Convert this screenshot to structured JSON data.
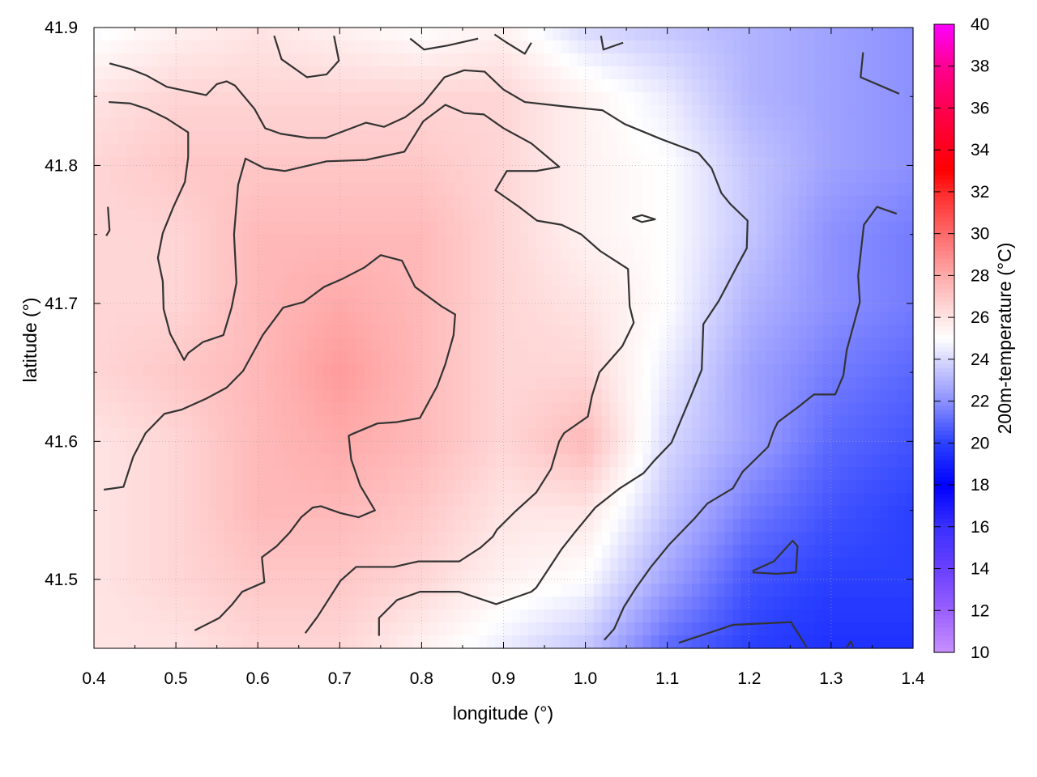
{
  "chart_data": {
    "type": "heatmap",
    "title": "",
    "xlabel": "longitude (°)",
    "ylabel": "latitude (°)",
    "colorbar_label": "200m-temperature (°C)",
    "xlim": [
      0.4,
      1.4
    ],
    "ylim": [
      41.45,
      41.9
    ],
    "clim": [
      10,
      40
    ],
    "grid": true,
    "x_ticks": [
      "0.4",
      "0.5",
      "0.6",
      "0.7",
      "0.8",
      "0.9",
      "1.0",
      "1.1",
      "1.2",
      "1.3",
      "1.4"
    ],
    "y_ticks": [
      "41.5",
      "41.6",
      "41.7",
      "41.8",
      "41.9"
    ],
    "colorbar_ticks": [
      "10",
      "12",
      "14",
      "16",
      "18",
      "20",
      "22",
      "24",
      "26",
      "28",
      "30",
      "32",
      "34",
      "36",
      "38",
      "40"
    ],
    "palette": [
      {
        "v": 10,
        "c": "#c890ff"
      },
      {
        "v": 12,
        "c": "#9a60ff"
      },
      {
        "v": 14,
        "c": "#6a40ff"
      },
      {
        "v": 16,
        "c": "#3a30ff"
      },
      {
        "v": 18,
        "c": "#0000ff"
      },
      {
        "v": 20,
        "c": "#2a40ff"
      },
      {
        "v": 22,
        "c": "#8c90ff"
      },
      {
        "v": 24,
        "c": "#d8d8ff"
      },
      {
        "v": 25,
        "c": "#ffffff"
      },
      {
        "v": 26,
        "c": "#ffe4e4"
      },
      {
        "v": 28,
        "c": "#ffaaaa"
      },
      {
        "v": 30,
        "c": "#ff6a6a"
      },
      {
        "v": 32,
        "c": "#ff2a2a"
      },
      {
        "v": 33,
        "c": "#ff0000"
      },
      {
        "v": 36,
        "c": "#ff0050"
      },
      {
        "v": 38,
        "c": "#ff0090"
      },
      {
        "v": 40,
        "c": "#ff00ff"
      }
    ],
    "grid_lon": [
      0.4,
      0.5,
      0.6,
      0.7,
      0.8,
      0.9,
      1.0,
      1.1,
      1.2,
      1.3,
      1.4
    ],
    "grid_lat": [
      41.9,
      41.85,
      41.8,
      41.75,
      41.7,
      41.65,
      41.6,
      41.55,
      41.5,
      41.45
    ],
    "values": [
      [
        24.8,
        25.5,
        26,
        25.5,
        25,
        25.5,
        24,
        23.5,
        23,
        22.5,
        22
      ],
      [
        26,
        26.5,
        26.5,
        26.5,
        26.5,
        26.5,
        25.5,
        24.5,
        23,
        22.5,
        22
      ],
      [
        26.5,
        27,
        27,
        27,
        27,
        26.5,
        25.5,
        25,
        23.5,
        22.5,
        22
      ],
      [
        26.5,
        26.5,
        27.5,
        27.5,
        27.5,
        26.5,
        25.5,
        25,
        23.5,
        22,
        21.5
      ],
      [
        26.5,
        26.5,
        27.5,
        28,
        27.5,
        26.5,
        26,
        25,
        23,
        22,
        21.5
      ],
      [
        26.5,
        27,
        27.5,
        28.5,
        27.5,
        26.5,
        26.5,
        24.5,
        22.5,
        21.5,
        21
      ],
      [
        26,
        26.5,
        27.5,
        28,
        27.5,
        26.5,
        27.5,
        24,
        22.5,
        21,
        20.5
      ],
      [
        26,
        26.5,
        27.5,
        27.5,
        27,
        26,
        26,
        23.5,
        21.5,
        20.5,
        20
      ],
      [
        26,
        26.5,
        27,
        27,
        26.5,
        25.5,
        25,
        22.5,
        20.5,
        20,
        20
      ],
      [
        26,
        26,
        26.5,
        26.5,
        25.5,
        24.5,
        23.5,
        21,
        20,
        19.5,
        19.5
      ]
    ],
    "contours": [
      [
        [
          0.419,
          41.874
        ],
        [
          0.444,
          41.87
        ],
        [
          0.465,
          41.865
        ],
        [
          0.489,
          41.857
        ],
        [
          0.537,
          41.851
        ],
        [
          0.55,
          41.859
        ],
        [
          0.562,
          41.861
        ],
        [
          0.572,
          41.858
        ],
        [
          0.596,
          41.841
        ],
        [
          0.609,
          41.827
        ],
        [
          0.628,
          41.823
        ],
        [
          0.661,
          41.82
        ],
        [
          0.683,
          41.82
        ],
        [
          0.732,
          41.831
        ],
        [
          0.754,
          41.828
        ],
        [
          0.78,
          41.835
        ],
        [
          0.802,
          41.845
        ],
        [
          0.828,
          41.864
        ],
        [
          0.852,
          41.869
        ],
        [
          0.877,
          41.868
        ],
        [
          0.9,
          41.855
        ],
        [
          0.926,
          41.846
        ],
        [
          0.971,
          41.843
        ],
        [
          1.021,
          41.84
        ],
        [
          1.048,
          41.83
        ],
        [
          1.093,
          41.819
        ],
        [
          1.138,
          41.809
        ],
        [
          1.154,
          41.798
        ],
        [
          1.166,
          41.78
        ],
        [
          1.177,
          41.772
        ],
        [
          1.198,
          41.76
        ],
        [
          1.197,
          41.74
        ],
        [
          1.186,
          41.728
        ],
        [
          1.163,
          41.702
        ],
        [
          1.144,
          41.685
        ],
        [
          1.142,
          41.652
        ],
        [
          1.129,
          41.633
        ],
        [
          1.105,
          41.599
        ],
        [
          1.084,
          41.586
        ],
        [
          1.071,
          41.577
        ],
        [
          1.042,
          41.566
        ],
        [
          1.012,
          41.552
        ],
        [
          0.987,
          41.534
        ],
        [
          0.971,
          41.522
        ],
        [
          0.94,
          41.494
        ],
        [
          0.934,
          41.491
        ],
        [
          0.891,
          41.482
        ],
        [
          0.846,
          41.491
        ],
        [
          0.798,
          41.491
        ],
        [
          0.77,
          41.485
        ],
        [
          0.748,
          41.472
        ],
        [
          0.748,
          41.459
        ]
      ],
      [
        [
          0.418,
          41.846
        ],
        [
          0.444,
          41.845
        ],
        [
          0.465,
          41.841
        ],
        [
          0.489,
          41.834
        ],
        [
          0.515,
          41.824
        ],
        [
          0.515,
          41.806
        ],
        [
          0.511,
          41.788
        ],
        [
          0.497,
          41.77
        ],
        [
          0.484,
          41.751
        ],
        [
          0.478,
          41.733
        ],
        [
          0.484,
          41.716
        ],
        [
          0.485,
          41.696
        ],
        [
          0.493,
          41.678
        ],
        [
          0.51,
          41.659
        ],
        [
          0.515,
          41.664
        ],
        [
          0.533,
          41.672
        ],
        [
          0.558,
          41.677
        ],
        [
          0.568,
          41.697
        ],
        [
          0.574,
          41.715
        ],
        [
          0.571,
          41.75
        ],
        [
          0.576,
          41.786
        ],
        [
          0.585,
          41.805
        ],
        [
          0.608,
          41.798
        ],
        [
          0.633,
          41.796
        ],
        [
          0.684,
          41.803
        ],
        [
          0.732,
          41.804
        ],
        [
          0.779,
          41.81
        ],
        [
          0.802,
          41.832
        ],
        [
          0.829,
          41.844
        ],
        [
          0.852,
          41.838
        ],
        [
          0.876,
          41.837
        ],
        [
          0.9,
          41.827
        ],
        [
          0.934,
          41.816
        ],
        [
          0.968,
          41.799
        ],
        [
          0.94,
          41.796
        ],
        [
          0.904,
          41.796
        ],
        [
          0.89,
          41.782
        ],
        [
          0.919,
          41.77
        ],
        [
          0.941,
          41.76
        ],
        [
          0.971,
          41.757
        ],
        [
          0.995,
          41.75
        ],
        [
          1.018,
          41.738
        ],
        [
          1.052,
          41.725
        ],
        [
          1.054,
          41.698
        ],
        [
          1.059,
          41.686
        ],
        [
          1.045,
          41.669
        ],
        [
          1.017,
          41.65
        ],
        [
          1.008,
          41.633
        ],
        [
          1.003,
          41.618
        ],
        [
          0.974,
          41.606
        ],
        [
          0.968,
          41.6
        ],
        [
          0.958,
          41.58
        ],
        [
          0.94,
          41.563
        ],
        [
          0.914,
          41.549
        ],
        [
          0.892,
          41.536
        ],
        [
          0.887,
          41.531
        ],
        [
          0.872,
          41.523
        ],
        [
          0.846,
          41.513
        ],
        [
          0.796,
          41.513
        ],
        [
          0.766,
          41.509
        ],
        [
          0.72,
          41.509
        ],
        [
          0.701,
          41.499
        ],
        [
          0.673,
          41.473
        ],
        [
          0.658,
          41.461
        ]
      ],
      [
        [
          0.412,
          41.565
        ],
        [
          0.436,
          41.567
        ],
        [
          0.448,
          41.589
        ],
        [
          0.463,
          41.606
        ],
        [
          0.486,
          41.62
        ],
        [
          0.507,
          41.623
        ],
        [
          0.537,
          41.631
        ],
        [
          0.562,
          41.639
        ],
        [
          0.582,
          41.651
        ],
        [
          0.606,
          41.677
        ],
        [
          0.631,
          41.697
        ],
        [
          0.656,
          41.701
        ],
        [
          0.681,
          41.712
        ],
        [
          0.704,
          41.718
        ],
        [
          0.73,
          41.726
        ],
        [
          0.75,
          41.735
        ],
        [
          0.776,
          41.731
        ],
        [
          0.792,
          41.712
        ],
        [
          0.824,
          41.698
        ],
        [
          0.841,
          41.692
        ],
        [
          0.839,
          41.677
        ],
        [
          0.829,
          41.656
        ],
        [
          0.819,
          41.64
        ],
        [
          0.798,
          41.617
        ],
        [
          0.77,
          41.614
        ],
        [
          0.746,
          41.613
        ],
        [
          0.714,
          41.605
        ],
        [
          0.711,
          41.604
        ],
        [
          0.714,
          41.587
        ],
        [
          0.725,
          41.568
        ],
        [
          0.743,
          41.55
        ],
        [
          0.723,
          41.545
        ],
        [
          0.701,
          41.548
        ],
        [
          0.677,
          41.553
        ],
        [
          0.667,
          41.552
        ],
        [
          0.653,
          41.545
        ],
        [
          0.639,
          41.534
        ],
        [
          0.623,
          41.524
        ],
        [
          0.605,
          41.516
        ],
        [
          0.608,
          41.498
        ],
        [
          0.581,
          41.491
        ],
        [
          0.569,
          41.482
        ],
        [
          0.553,
          41.472
        ],
        [
          0.523,
          41.463
        ]
      ],
      [
        [
          1.38,
          41.765
        ],
        [
          1.356,
          41.77
        ],
        [
          1.34,
          41.757
        ],
        [
          1.333,
          41.72
        ],
        [
          1.335,
          41.701
        ],
        [
          1.319,
          41.666
        ],
        [
          1.315,
          41.648
        ],
        [
          1.305,
          41.634
        ],
        [
          1.279,
          41.634
        ],
        [
          1.26,
          41.625
        ],
        [
          1.235,
          41.614
        ],
        [
          1.23,
          41.608
        ],
        [
          1.223,
          41.596
        ],
        [
          1.192,
          41.578
        ],
        [
          1.18,
          41.566
        ],
        [
          1.149,
          41.555
        ],
        [
          1.133,
          41.544
        ],
        [
          1.102,
          41.525
        ],
        [
          1.08,
          41.509
        ],
        [
          1.062,
          41.494
        ],
        [
          1.047,
          41.48
        ],
        [
          1.035,
          41.464
        ],
        [
          1.023,
          41.456
        ]
      ],
      [
        [
          0.62,
          41.894
        ],
        [
          0.629,
          41.877
        ],
        [
          0.66,
          41.864
        ],
        [
          0.684,
          41.866
        ],
        [
          0.699,
          41.876
        ],
        [
          0.693,
          41.894
        ]
      ],
      [
        [
          0.786,
          41.892
        ],
        [
          0.803,
          41.884
        ],
        [
          0.832,
          41.887
        ],
        [
          0.869,
          41.892
        ]
      ],
      [
        [
          0.889,
          41.895
        ],
        [
          0.904,
          41.889
        ],
        [
          0.926,
          41.881
        ],
        [
          0.934,
          41.889
        ]
      ],
      [
        [
          1.019,
          41.894
        ],
        [
          1.022,
          41.884
        ],
        [
          1.046,
          41.889
        ]
      ],
      [
        [
          1.339,
          41.882
        ],
        [
          1.336,
          41.864
        ],
        [
          1.383,
          41.852
        ]
      ],
      [
        [
          1.057,
          41.762
        ],
        [
          1.069,
          41.764
        ],
        [
          1.085,
          41.761
        ],
        [
          1.069,
          41.759
        ],
        [
          1.057,
          41.762
        ]
      ],
      [
        [
          0.417,
          41.77
        ],
        [
          0.419,
          41.753
        ],
        [
          0.415,
          41.749
        ]
      ],
      [
        [
          1.204,
          41.506
        ],
        [
          1.23,
          41.513
        ],
        [
          1.253,
          41.528
        ],
        [
          1.259,
          41.524
        ],
        [
          1.257,
          41.505
        ],
        [
          1.234,
          41.504
        ],
        [
          1.204,
          41.505
        ]
      ],
      [
        [
          1.114,
          41.454
        ],
        [
          1.155,
          41.462
        ],
        [
          1.18,
          41.467
        ],
        [
          1.251,
          41.469
        ],
        [
          1.27,
          41.451
        ]
      ],
      [
        [
          1.319,
          41.451
        ],
        [
          1.324,
          41.455
        ],
        [
          1.327,
          41.451
        ]
      ]
    ],
    "contour_color": "#333333"
  }
}
